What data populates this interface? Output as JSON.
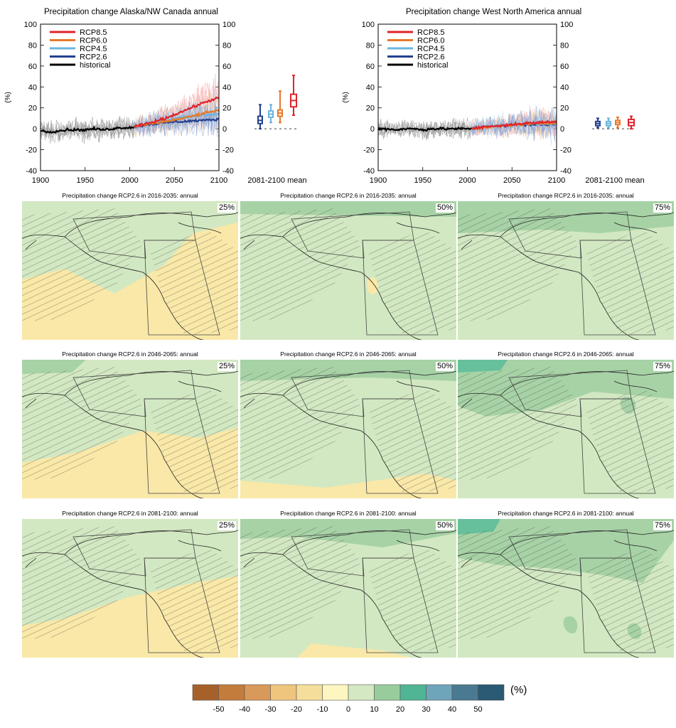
{
  "charts": [
    {
      "title": "Precipitation change Alaska/NW Canada annual",
      "ylabel": "(%)",
      "ylim": [
        -40,
        100
      ],
      "yticks": [
        "100",
        "80",
        "60",
        "40",
        "20",
        "0",
        "-20",
        "-40"
      ],
      "xticks": [
        "1900",
        "1950",
        "2000",
        "2050",
        "2100"
      ],
      "box_label": "2081-2100 mean",
      "legend": [
        "RCP8.5",
        "RCP6.0",
        "RCP4.5",
        "RCP2.6",
        "historical"
      ],
      "boxes": [
        {
          "scenario": "RCP2.6",
          "low": 0,
          "q1": 5,
          "median": 8,
          "q3": 12,
          "high": 23
        },
        {
          "scenario": "RCP4.5",
          "low": 6,
          "q1": 11,
          "median": 14,
          "q3": 17,
          "high": 23
        },
        {
          "scenario": "RCP6.0",
          "low": 6,
          "q1": 12,
          "median": 15,
          "q3": 18,
          "high": 36
        },
        {
          "scenario": "RCP8.5",
          "low": 13,
          "q1": 21,
          "median": 27,
          "q3": 33,
          "high": 51
        }
      ]
    },
    {
      "title": "Precipitation change West North America annual",
      "ylabel": "(%)",
      "ylim": [
        -40,
        100
      ],
      "yticks": [
        "100",
        "80",
        "60",
        "40",
        "20",
        "0",
        "-20",
        "-40"
      ],
      "xticks": [
        "1900",
        "1950",
        "2000",
        "2050",
        "2100"
      ],
      "box_label": "2081-2100 mean",
      "legend": [
        "RCP8.5",
        "RCP6.0",
        "RCP4.5",
        "RCP2.6",
        "historical"
      ],
      "boxes": [
        {
          "scenario": "RCP2.6",
          "low": 1,
          "q1": 3,
          "median": 5,
          "q3": 7,
          "high": 10
        },
        {
          "scenario": "RCP4.5",
          "low": 1,
          "q1": 3,
          "median": 5,
          "q3": 7,
          "high": 10
        },
        {
          "scenario": "RCP6.0",
          "low": 1,
          "q1": 4,
          "median": 6,
          "q3": 8,
          "high": 11
        },
        {
          "scenario": "RCP8.5",
          "low": 0,
          "q1": 3,
          "median": 6,
          "q3": 9,
          "high": 12
        }
      ]
    }
  ],
  "chart_data": [
    {
      "type": "line",
      "title": "Precipitation change Alaska/NW Canada annual",
      "ylabel": "(%)",
      "xlim": [
        1900,
        2100
      ],
      "ylim": [
        -40,
        100
      ],
      "series": [
        {
          "name": "historical",
          "x": [
            1900,
            1910,
            1920,
            1930,
            1940,
            1950,
            1960,
            1970,
            1980,
            1990,
            2000,
            2005
          ],
          "values": [
            -2,
            -3,
            -2,
            -1,
            -1,
            -1,
            0,
            -1,
            0,
            1,
            1,
            2
          ]
        },
        {
          "name": "RCP2.6",
          "x": [
            2005,
            2020,
            2040,
            2060,
            2080,
            2100
          ],
          "values": [
            2,
            4,
            6,
            7,
            8,
            9
          ]
        },
        {
          "name": "RCP4.5",
          "x": [
            2005,
            2020,
            2040,
            2060,
            2080,
            2100
          ],
          "values": [
            2,
            5,
            8,
            11,
            13,
            14
          ]
        },
        {
          "name": "RCP6.0",
          "x": [
            2005,
            2020,
            2040,
            2060,
            2080,
            2100
          ],
          "values": [
            2,
            4,
            7,
            10,
            14,
            18
          ]
        },
        {
          "name": "RCP8.5",
          "x": [
            2005,
            2020,
            2040,
            2060,
            2080,
            2100
          ],
          "values": [
            2,
            5,
            10,
            17,
            24,
            30
          ]
        }
      ]
    },
    {
      "type": "line",
      "title": "Precipitation change West North America annual",
      "ylabel": "(%)",
      "xlim": [
        1900,
        2100
      ],
      "ylim": [
        -40,
        100
      ],
      "series": [
        {
          "name": "historical",
          "x": [
            1900,
            1910,
            1920,
            1930,
            1940,
            1950,
            1960,
            1970,
            1980,
            1990,
            2000,
            2005
          ],
          "values": [
            0,
            0,
            -1,
            0,
            0,
            -1,
            0,
            0,
            0,
            0,
            0,
            0
          ]
        },
        {
          "name": "RCP2.6",
          "x": [
            2005,
            2020,
            2040,
            2060,
            2080,
            2100
          ],
          "values": [
            0,
            2,
            3,
            4,
            4,
            4
          ]
        },
        {
          "name": "RCP4.5",
          "x": [
            2005,
            2020,
            2040,
            2060,
            2080,
            2100
          ],
          "values": [
            0,
            2,
            3,
            4,
            5,
            5
          ]
        },
        {
          "name": "RCP6.0",
          "x": [
            2005,
            2020,
            2040,
            2060,
            2080,
            2100
          ],
          "values": [
            0,
            1,
            3,
            4,
            5,
            6
          ]
        },
        {
          "name": "RCP8.5",
          "x": [
            2005,
            2020,
            2040,
            2060,
            2080,
            2100
          ],
          "values": [
            0,
            2,
            3,
            5,
            6,
            7
          ]
        }
      ]
    }
  ],
  "maps": [
    {
      "title": "Precipitation change RCP2.6 in 2016-2035: annual",
      "percentile": "25%"
    },
    {
      "title": "Precipitation change RCP2.6 in 2016-2035: annual",
      "percentile": "50%"
    },
    {
      "title": "Precipitation change RCP2.6 in 2016-2035: annual",
      "percentile": "75%"
    },
    {
      "title": "Precipitation change RCP2.6 in 2046-2065: annual",
      "percentile": "25%"
    },
    {
      "title": "Precipitation change RCP2.6 in 2046-2065: annual",
      "percentile": "50%"
    },
    {
      "title": "Precipitation change RCP2.6 in 2046-2065: annual",
      "percentile": "75%"
    },
    {
      "title": "Precipitation change RCP2.6 in 2081-2100: annual",
      "percentile": "25%"
    },
    {
      "title": "Precipitation change RCP2.6 in 2081-2100: annual",
      "percentile": "50%"
    },
    {
      "title": "Precipitation change RCP2.6 in 2081-2100: annual",
      "percentile": "75%"
    }
  ],
  "colorbar": {
    "unit": "(%)",
    "labels": [
      "-50",
      "-40",
      "-30",
      "-20",
      "-10",
      "0",
      "10",
      "20",
      "30",
      "40",
      "50"
    ],
    "colors": [
      "#a6612a",
      "#c47c3c",
      "#d9995a",
      "#efc57e",
      "#f5de9b",
      "#fdf6c0",
      "#d4e8c4",
      "#98cc9d",
      "#4fb594",
      "#6fa5bb",
      "#4a7a91",
      "#2a5a74"
    ]
  },
  "scenario_colors": {
    "RCP8.5": "#e0242a",
    "RCP6.0": "#e8792b",
    "RCP4.5": "#6cb4dc",
    "RCP2.6": "#24418f",
    "historical": "#000000"
  }
}
